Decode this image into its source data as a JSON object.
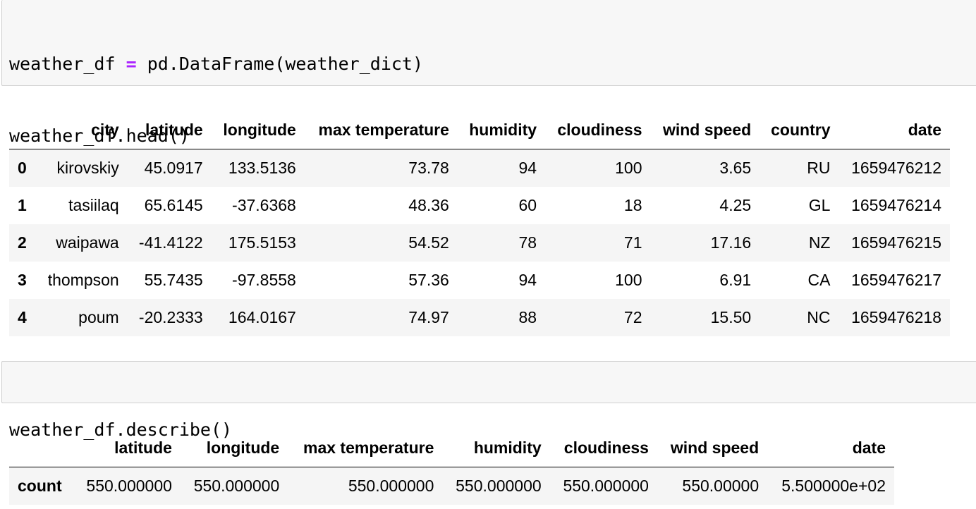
{
  "cell1": {
    "line1": {
      "a": "weather_df ",
      "op": "=",
      "b": " pd.DataFrame(weather_dict)"
    },
    "line2": "weather_df.head()"
  },
  "table1": {
    "columns": [
      "",
      "city",
      "latitude",
      "longitude",
      "max temperature",
      "humidity",
      "cloudiness",
      "wind speed",
      "country",
      "date"
    ],
    "rows": [
      [
        "0",
        "kirovskiy",
        "45.0917",
        "133.5136",
        "73.78",
        "94",
        "100",
        "3.65",
        "RU",
        "1659476212"
      ],
      [
        "1",
        "tasiilaq",
        "65.6145",
        "-37.6368",
        "48.36",
        "60",
        "18",
        "4.25",
        "GL",
        "1659476214"
      ],
      [
        "2",
        "waipawa",
        "-41.4122",
        "175.5153",
        "54.52",
        "78",
        "71",
        "17.16",
        "NZ",
        "1659476215"
      ],
      [
        "3",
        "thompson",
        "55.7435",
        "-97.8558",
        "57.36",
        "94",
        "100",
        "6.91",
        "CA",
        "1659476217"
      ],
      [
        "4",
        "poum",
        "-20.2333",
        "164.0167",
        "74.97",
        "88",
        "72",
        "15.50",
        "NC",
        "1659476218"
      ]
    ]
  },
  "cell2": {
    "line1": "weather_df.describe()"
  },
  "table2": {
    "columns": [
      "",
      "latitude",
      "longitude",
      "max temperature",
      "humidity",
      "cloudiness",
      "wind speed",
      "date"
    ],
    "rows": [
      [
        "count",
        "550.000000",
        "550.000000",
        "550.000000",
        "550.000000",
        "550.000000",
        "550.00000",
        "5.500000e+02"
      ]
    ]
  }
}
